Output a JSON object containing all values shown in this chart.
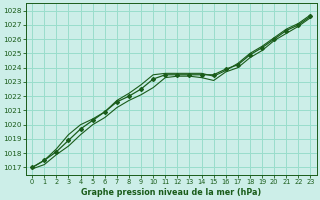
{
  "x": [
    0,
    1,
    2,
    3,
    4,
    5,
    6,
    7,
    8,
    9,
    10,
    11,
    12,
    13,
    14,
    15,
    16,
    17,
    18,
    19,
    20,
    21,
    22,
    23
  ],
  "line_main": [
    1017.0,
    1017.5,
    1018.1,
    1018.9,
    1019.7,
    1020.3,
    1020.9,
    1021.6,
    1022.0,
    1022.5,
    1023.2,
    1023.5,
    1023.5,
    1023.5,
    1023.5,
    1023.5,
    1023.9,
    1024.2,
    1024.9,
    1025.4,
    1026.0,
    1026.6,
    1027.0,
    1027.6
  ],
  "line_high": [
    1017.0,
    1017.5,
    1018.3,
    1019.3,
    1020.0,
    1020.4,
    1020.9,
    1021.7,
    1022.2,
    1022.8,
    1023.5,
    1023.6,
    1023.6,
    1023.6,
    1023.6,
    1023.4,
    1023.8,
    1024.3,
    1025.0,
    1025.5,
    1026.1,
    1026.7,
    1027.1,
    1027.7
  ],
  "line_low": [
    1016.9,
    1017.2,
    1017.9,
    1018.5,
    1019.3,
    1020.0,
    1020.5,
    1021.2,
    1021.7,
    1022.1,
    1022.6,
    1023.3,
    1023.4,
    1023.4,
    1023.3,
    1023.1,
    1023.7,
    1024.0,
    1024.7,
    1025.2,
    1025.9,
    1026.4,
    1026.9,
    1027.5
  ],
  "bg_color": "#cceee8",
  "grid_color": "#99ddcc",
  "line_color": "#1a5c1a",
  "title": "Graphe pression niveau de la mer (hPa)",
  "ylim": [
    1016.5,
    1028.5
  ],
  "yticks": [
    1017,
    1018,
    1019,
    1020,
    1021,
    1022,
    1023,
    1024,
    1025,
    1026,
    1027,
    1028
  ],
  "xticks": [
    0,
    1,
    2,
    3,
    4,
    5,
    6,
    7,
    8,
    9,
    10,
    11,
    12,
    13,
    14,
    15,
    16,
    17,
    18,
    19,
    20,
    21,
    22,
    23
  ]
}
